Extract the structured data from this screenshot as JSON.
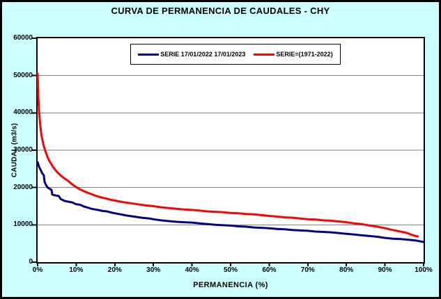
{
  "colors": {
    "background": "#CCFFFF",
    "plot_background": "#FFFFFF",
    "grid": "#808080",
    "axis": "#000000"
  },
  "chart_data": {
    "type": "line",
    "title": "CURVA DE PERMANENCIA DE CAUDALES - CHY",
    "xlabel": "PERMANENCIA (%)",
    "ylabel": "CAUDAL (m3/s)",
    "xlim": [
      0,
      100
    ],
    "ylim": [
      0,
      60000
    ],
    "xticks": [
      0,
      10,
      20,
      30,
      40,
      50,
      60,
      70,
      80,
      90,
      100
    ],
    "xtick_labels": [
      "0%",
      "10%",
      "20%",
      "30%",
      "40%",
      "50%",
      "60%",
      "70%",
      "80%",
      "90%",
      "100%"
    ],
    "yticks": [
      0,
      10000,
      20000,
      30000,
      40000,
      50000,
      60000
    ],
    "ytick_labels": [
      "0",
      "10000",
      "20000",
      "30000",
      "40000",
      "50000",
      "60000"
    ],
    "grid": "horizontal",
    "legend_position": "top-inside",
    "series": [
      {
        "name": "SERIE 17/01/2022 17/01/2023",
        "color": "#00008B",
        "points": [
          [
            0,
            26800
          ],
          [
            0.4,
            25500
          ],
          [
            0.8,
            24700
          ],
          [
            1.2,
            23800
          ],
          [
            1.6,
            23300
          ],
          [
            1.8,
            21500
          ],
          [
            2.2,
            20600
          ],
          [
            2.6,
            20000
          ],
          [
            3.2,
            19600
          ],
          [
            3.6,
            19400
          ],
          [
            3.8,
            18100
          ],
          [
            4.5,
            17900
          ],
          [
            5.5,
            17700
          ],
          [
            6,
            16900
          ],
          [
            7,
            16400
          ],
          [
            8,
            16200
          ],
          [
            9,
            16000
          ],
          [
            10,
            15500
          ],
          [
            11,
            15400
          ],
          [
            12,
            14900
          ],
          [
            13,
            14600
          ],
          [
            14,
            14300
          ],
          [
            15,
            14100
          ],
          [
            16,
            13900
          ],
          [
            17,
            13700
          ],
          [
            18,
            13600
          ],
          [
            19,
            13300
          ],
          [
            20,
            13100
          ],
          [
            22,
            12700
          ],
          [
            23,
            12500
          ],
          [
            25,
            12200
          ],
          [
            27,
            11900
          ],
          [
            29,
            11700
          ],
          [
            30,
            11500
          ],
          [
            32,
            11200
          ],
          [
            34,
            11000
          ],
          [
            36,
            10800
          ],
          [
            38,
            10700
          ],
          [
            40,
            10600
          ],
          [
            42,
            10400
          ],
          [
            44,
            10200
          ],
          [
            46,
            10000
          ],
          [
            48,
            9900
          ],
          [
            50,
            9800
          ],
          [
            52,
            9600
          ],
          [
            54,
            9500
          ],
          [
            56,
            9300
          ],
          [
            58,
            9200
          ],
          [
            60,
            9100
          ],
          [
            62,
            8900
          ],
          [
            64,
            8800
          ],
          [
            66,
            8600
          ],
          [
            68,
            8500
          ],
          [
            70,
            8400
          ],
          [
            72,
            8200
          ],
          [
            74,
            8100
          ],
          [
            76,
            8000
          ],
          [
            78,
            7800
          ],
          [
            80,
            7600
          ],
          [
            82,
            7400
          ],
          [
            84,
            7200
          ],
          [
            86,
            7000
          ],
          [
            88,
            6800
          ],
          [
            90,
            6500
          ],
          [
            92,
            6300
          ],
          [
            94,
            6200
          ],
          [
            96,
            6000
          ],
          [
            98,
            5800
          ],
          [
            100,
            5400
          ]
        ]
      },
      {
        "name": "SERIE=(1971-2022)",
        "color": "#FF0000",
        "points": [
          [
            0,
            50500
          ],
          [
            0.2,
            44000
          ],
          [
            0.4,
            40000
          ],
          [
            0.7,
            36500
          ],
          [
            1,
            34000
          ],
          [
            1.5,
            31500
          ],
          [
            2,
            29800
          ],
          [
            2.5,
            28300
          ],
          [
            3,
            27200
          ],
          [
            4,
            25500
          ],
          [
            5,
            24200
          ],
          [
            6,
            23200
          ],
          [
            7,
            22400
          ],
          [
            8,
            21700
          ],
          [
            9,
            20800
          ],
          [
            10,
            20100
          ],
          [
            11,
            19500
          ],
          [
            12,
            19000
          ],
          [
            13,
            18600
          ],
          [
            14,
            18200
          ],
          [
            15,
            17800
          ],
          [
            16,
            17500
          ],
          [
            17,
            17200
          ],
          [
            18,
            17000
          ],
          [
            19,
            16700
          ],
          [
            20,
            16500
          ],
          [
            22,
            16100
          ],
          [
            24,
            15800
          ],
          [
            26,
            15500
          ],
          [
            28,
            15200
          ],
          [
            30,
            15000
          ],
          [
            32,
            14700
          ],
          [
            34,
            14500
          ],
          [
            36,
            14300
          ],
          [
            38,
            14100
          ],
          [
            40,
            14000
          ],
          [
            42,
            13800
          ],
          [
            44,
            13600
          ],
          [
            46,
            13500
          ],
          [
            48,
            13400
          ],
          [
            50,
            13200
          ],
          [
            52,
            13100
          ],
          [
            54,
            12900
          ],
          [
            56,
            12800
          ],
          [
            58,
            12600
          ],
          [
            60,
            12400
          ],
          [
            62,
            12200
          ],
          [
            64,
            12000
          ],
          [
            66,
            11900
          ],
          [
            68,
            11700
          ],
          [
            70,
            11500
          ],
          [
            72,
            11400
          ],
          [
            74,
            11200
          ],
          [
            76,
            11100
          ],
          [
            78,
            10900
          ],
          [
            80,
            10700
          ],
          [
            82,
            10400
          ],
          [
            84,
            10200
          ],
          [
            85,
            10000
          ],
          [
            86,
            9800
          ],
          [
            88,
            9500
          ],
          [
            90,
            9100
          ],
          [
            92,
            8600
          ],
          [
            94,
            8200
          ],
          [
            95,
            8000
          ],
          [
            96,
            7700
          ],
          [
            97,
            7300
          ],
          [
            98,
            7000
          ],
          [
            98.5,
            6900
          ]
        ]
      }
    ]
  }
}
